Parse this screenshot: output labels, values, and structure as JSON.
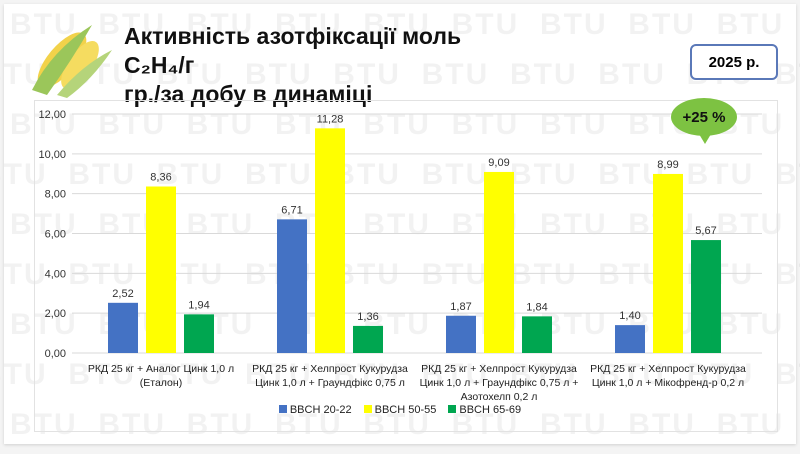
{
  "title_line1": "Активність азотфіксації моль C₂H₄/г",
  "title_line2": "гр./за добу в динаміці",
  "year_badge": "2025 р.",
  "increase_badge": "+25 %",
  "watermark": "BTU",
  "chart_data": {
    "type": "bar",
    "title": "Активність азотфіксації моль C₂H₄/г гр./за добу в динаміці",
    "categories": [
      [
        "РКД 25 кг + Аналог Цинк 1,0 л",
        "(Еталон)"
      ],
      [
        "РКД 25 кг + Хелпрост Кукурудза",
        "Цинк 1,0 л + Граундфікс 0,75 л"
      ],
      [
        "РКД 25 кг + Хелпрост Кукурудза",
        "Цинк 1,0 л + Граундфікс 0,75 л +",
        "Азотохелп 0,2 л"
      ],
      [
        "РКД 25 кг + Хелпрост Кукурудза",
        "Цинк 1,0 л + Мікофренд-р 0,2 л"
      ]
    ],
    "series": [
      {
        "name": "BBCH 20-22",
        "color": "#4472c4",
        "values": [
          2.52,
          6.71,
          1.87,
          1.4
        ],
        "labels": [
          "2,52",
          "6,71",
          "1,87",
          "1,40"
        ]
      },
      {
        "name": "BBCH 50-55",
        "color": "#ffff00",
        "values": [
          8.36,
          11.28,
          9.09,
          8.99
        ],
        "labels": [
          "8,36",
          "11,28",
          "9,09",
          "8,99"
        ]
      },
      {
        "name": "BBCH 65-69",
        "color": "#00a650",
        "values": [
          1.94,
          1.36,
          1.84,
          5.67
        ],
        "labels": [
          "1,94",
          "1,36",
          "1,84",
          "5,67"
        ]
      }
    ],
    "yticks": [
      "0,00",
      "2,00",
      "4,00",
      "6,00",
      "8,00",
      "10,00",
      "12,00"
    ],
    "ylim": [
      0,
      12
    ],
    "grid": true,
    "legend": "bottom"
  }
}
